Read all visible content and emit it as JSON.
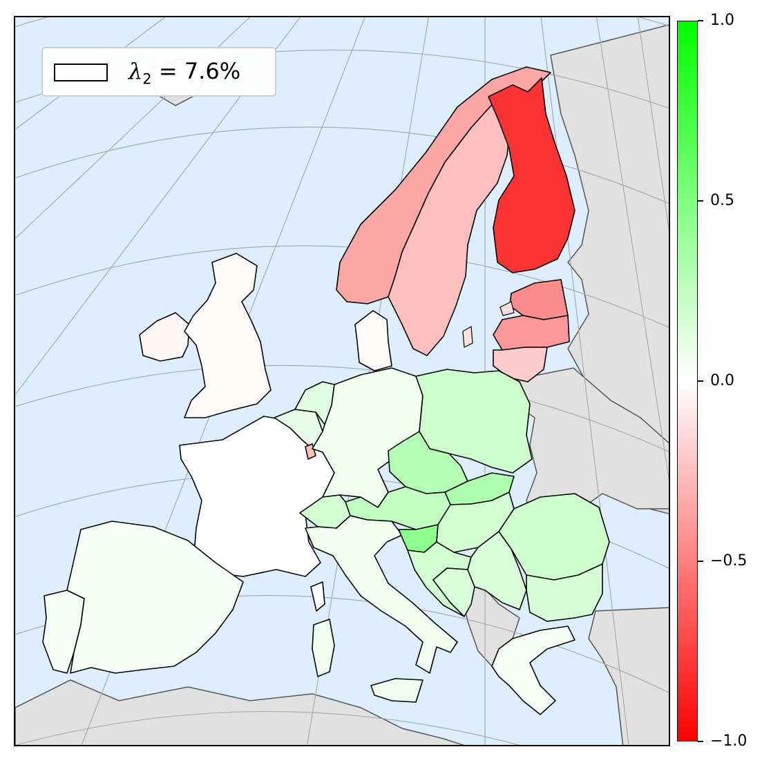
{
  "legend": {
    "symbol": "λ",
    "subscript": "2",
    "rest": " = 7.6%"
  },
  "colorbar": {
    "ticks": [
      {
        "value": 1.0,
        "label": "1.0"
      },
      {
        "value": 0.5,
        "label": "0.5"
      },
      {
        "value": 0.0,
        "label": "0.0"
      },
      {
        "value": -0.5,
        "label": "−0.5"
      },
      {
        "value": -1.0,
        "label": "−1.0"
      }
    ],
    "colors": {
      "min": "#ff0000",
      "mid": "#ffffff",
      "max": "#00ff00"
    }
  },
  "colors": {
    "ocean": "#ddeeff",
    "land_other": "#e1e1e1",
    "graticule": "#a9a9a9"
  },
  "countries": [
    {
      "name": "Finland",
      "value": -0.8
    },
    {
      "name": "Norway",
      "value": -0.35
    },
    {
      "name": "Sweden",
      "value": -0.25
    },
    {
      "name": "Estonia",
      "value": -0.45
    },
    {
      "name": "Latvia",
      "value": -0.4
    },
    {
      "name": "Lithuania",
      "value": -0.2
    },
    {
      "name": "Denmark",
      "value": -0.02
    },
    {
      "name": "Ireland",
      "value": -0.03
    },
    {
      "name": "United Kingdom",
      "value": -0.02
    },
    {
      "name": "Luxembourg",
      "value": -0.25
    },
    {
      "name": "France",
      "value": 0.0
    },
    {
      "name": "Spain",
      "value": 0.04
    },
    {
      "name": "Portugal",
      "value": 0.04
    },
    {
      "name": "Belgium",
      "value": 0.1
    },
    {
      "name": "Netherlands",
      "value": 0.12
    },
    {
      "name": "Germany",
      "value": 0.06
    },
    {
      "name": "Poland",
      "value": 0.2
    },
    {
      "name": "Czechia",
      "value": 0.3
    },
    {
      "name": "Slovakia",
      "value": 0.32
    },
    {
      "name": "Austria",
      "value": 0.24
    },
    {
      "name": "Switzerland",
      "value": 0.18
    },
    {
      "name": "Italy",
      "value": 0.06
    },
    {
      "name": "Slovenia",
      "value": 0.45
    },
    {
      "name": "Croatia",
      "value": 0.18
    },
    {
      "name": "Hungary",
      "value": 0.18
    },
    {
      "name": "Bosnia and Herzegovina",
      "value": 0.15
    },
    {
      "name": "Serbia",
      "value": 0.15
    },
    {
      "name": "Romania",
      "value": 0.2
    },
    {
      "name": "Bulgaria",
      "value": 0.16
    },
    {
      "name": "Greece",
      "value": 0.04
    }
  ]
}
